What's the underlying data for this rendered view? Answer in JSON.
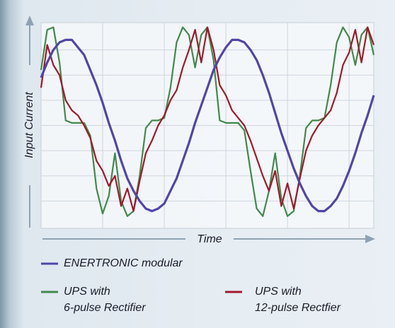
{
  "chart_data": {
    "type": "line",
    "y_label": "Input Current",
    "x_label": "Time",
    "x": [
      0,
      1,
      2,
      3,
      4,
      5,
      6,
      7,
      8,
      9,
      10,
      11,
      12,
      13,
      14,
      15,
      16,
      17,
      18,
      19,
      20,
      21,
      22,
      23,
      24,
      25,
      26,
      27,
      28,
      29,
      30,
      31,
      32,
      33,
      34,
      35,
      36,
      37,
      38,
      39,
      40,
      41,
      42,
      43,
      44,
      45,
      46,
      47,
      48,
      49,
      50,
      51,
      52,
      53,
      54
    ],
    "xlim": [
      0,
      54
    ],
    "xticks": [
      10,
      20,
      30,
      40,
      50
    ],
    "ylim": [
      0,
      8
    ],
    "yticks": [
      1,
      2,
      3,
      4,
      5,
      6,
      7
    ],
    "grid": true,
    "series": [
      {
        "name": "UPS with\n6-pulse Rectifier",
        "color": "#3f8a4a",
        "values": [
          6.2,
          7.8,
          7.9,
          6.5,
          4.2,
          4.1,
          4.1,
          4.1,
          3.6,
          1.5,
          0.5,
          1.2,
          2.9,
          1.0,
          0.4,
          0.6,
          2.0,
          3.9,
          4.2,
          4.2,
          4.3,
          5.5,
          7.3,
          7.9,
          7.6,
          6.3,
          7.6,
          7.9,
          6.6,
          4.2,
          4.1,
          4.1,
          4.1,
          3.8,
          2.2,
          0.7,
          0.4,
          1.4,
          2.9,
          1.1,
          0.4,
          0.6,
          2.0,
          3.9,
          4.2,
          4.2,
          4.3,
          5.6,
          7.3,
          7.9,
          7.5,
          6.4,
          7.6,
          7.9,
          6.8
        ]
      },
      {
        "name": "UPS with\n12-pulse Rectfier",
        "color": "#a0192b",
        "values": [
          5.5,
          7.2,
          6.4,
          6.0,
          5.0,
          4.6,
          4.4,
          4.0,
          3.5,
          2.6,
          2.2,
          1.6,
          2.0,
          0.8,
          1.5,
          0.6,
          1.8,
          2.9,
          3.4,
          4.0,
          4.4,
          5.0,
          5.4,
          6.3,
          7.0,
          7.8,
          6.5,
          7.9,
          7.0,
          5.6,
          5.2,
          4.6,
          4.3,
          4.0,
          3.4,
          2.7,
          2.0,
          1.4,
          2.2,
          0.8,
          1.7,
          0.7,
          1.9,
          3.0,
          3.6,
          4.0,
          4.3,
          4.6,
          5.3,
          6.4,
          6.9,
          7.8,
          6.5,
          7.9,
          7.2
        ]
      },
      {
        "name": "ENERTRONIC modular",
        "color": "#5046a8",
        "values": [
          5.9,
          6.5,
          7.0,
          7.3,
          7.4,
          7.4,
          7.1,
          6.8,
          6.2,
          5.6,
          4.9,
          4.1,
          3.4,
          2.6,
          1.9,
          1.4,
          1.0,
          0.7,
          0.6,
          0.7,
          0.9,
          1.4,
          1.9,
          2.6,
          3.3,
          4.1,
          4.8,
          5.5,
          6.2,
          6.7,
          7.1,
          7.4,
          7.4,
          7.3,
          7.0,
          6.6,
          6.0,
          5.3,
          4.5,
          3.7,
          3.0,
          2.3,
          1.7,
          1.2,
          0.8,
          0.6,
          0.6,
          0.8,
          1.1,
          1.6,
          2.2,
          2.9,
          3.7,
          4.4,
          5.2
        ]
      }
    ]
  }
}
